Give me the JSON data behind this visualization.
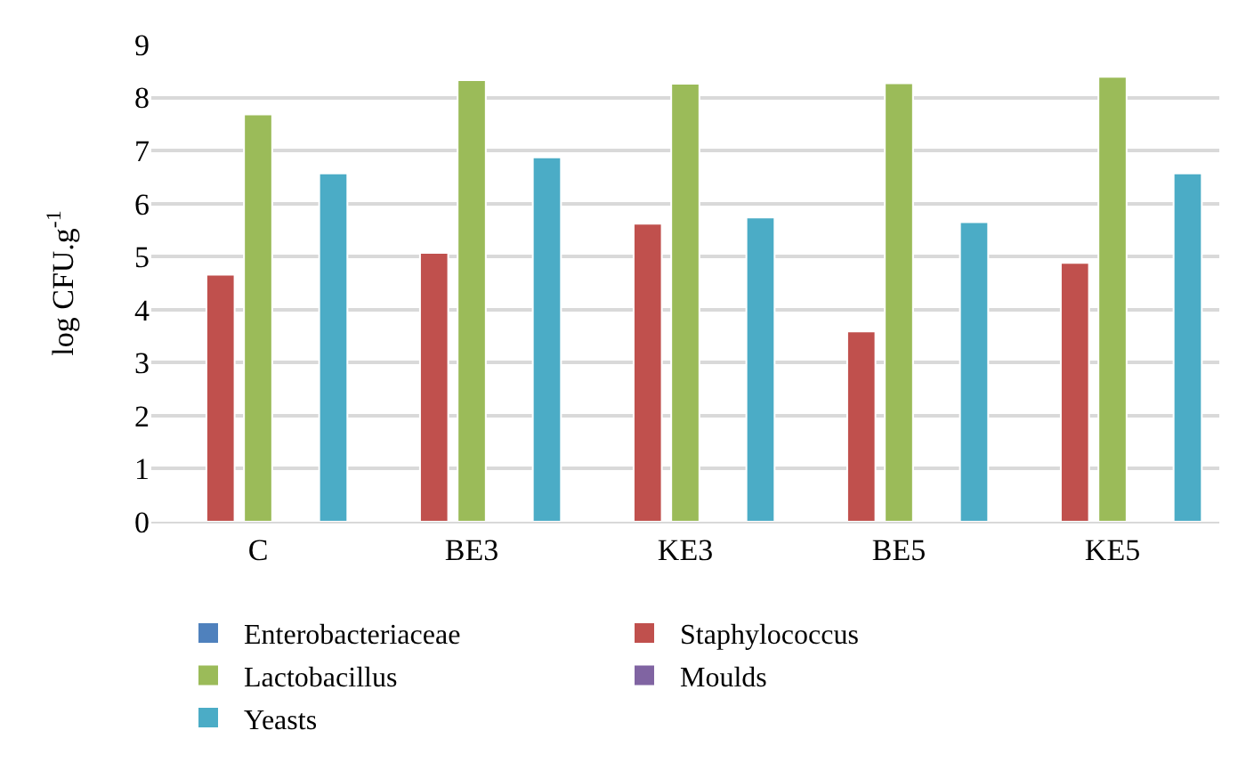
{
  "chart_data": {
    "type": "bar",
    "ylabel": "log CFU.g$^{-1}$",
    "categories": [
      "C",
      "BE3",
      "KE3",
      "BE5",
      "KE5"
    ],
    "series": [
      {
        "name": "Enterobacteriaceae",
        "color": "#4f81bd",
        "values": [
          null,
          null,
          null,
          null,
          null
        ]
      },
      {
        "name": "Staphylococcus",
        "color": "#c0504d",
        "values": [
          4.66,
          5.07,
          5.62,
          3.59,
          4.88
        ]
      },
      {
        "name": "Lactobacillus",
        "color": "#9bbb59",
        "values": [
          7.68,
          8.33,
          8.26,
          8.27,
          8.39
        ]
      },
      {
        "name": "Moulds",
        "color": "#8064a2",
        "values": [
          null,
          null,
          null,
          null,
          null
        ]
      },
      {
        "name": "Yeasts",
        "color": "#4bacc6",
        "values": [
          6.57,
          6.87,
          5.74,
          5.65,
          6.57
        ]
      }
    ],
    "ylim": [
      0,
      9
    ],
    "yticks": [
      0,
      1,
      2,
      3,
      4,
      5,
      6,
      7,
      8,
      9
    ],
    "grid": "y",
    "legend": "bottom"
  }
}
